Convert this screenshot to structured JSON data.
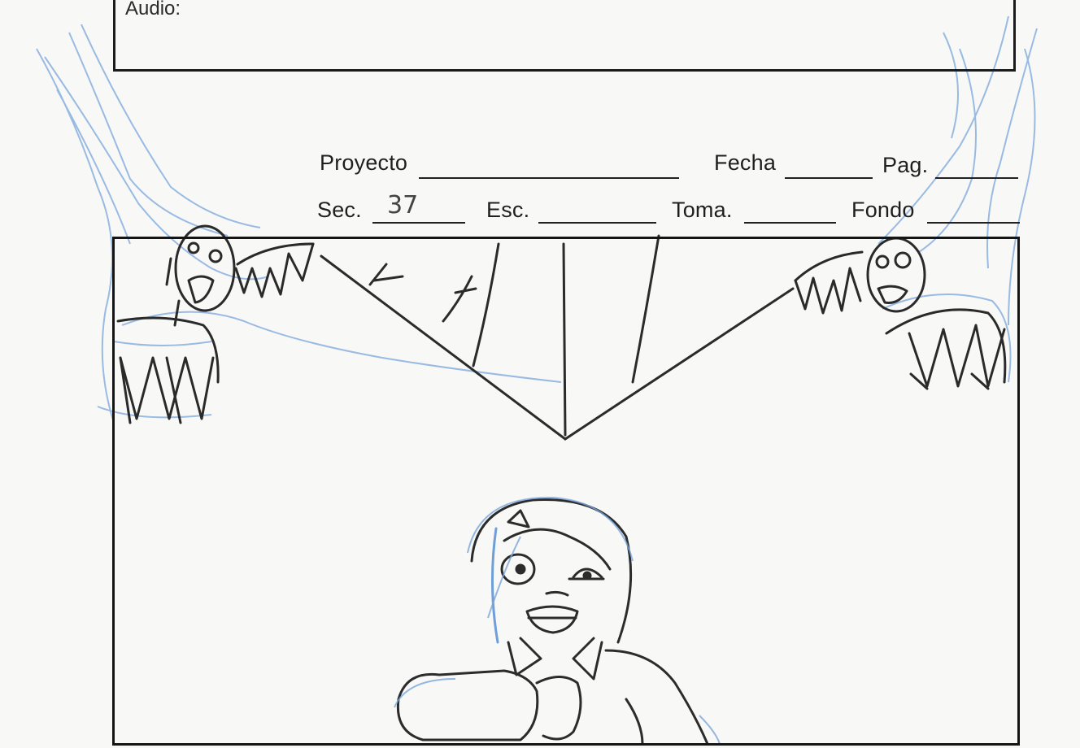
{
  "form": {
    "audio_label": "Audio:",
    "proyecto_label": "Proyecto",
    "fecha_label": "Fecha",
    "pag_label": "Pag.",
    "sec_label": "Sec.",
    "sec_value": "37",
    "esc_label": "Esc.",
    "toma_label": "Toma.",
    "fondo_label": "Fondo"
  },
  "colors": {
    "paper": "#f8f8f6",
    "ink": "#1b1b1b",
    "pencil_blue": "#6f9fd6"
  }
}
